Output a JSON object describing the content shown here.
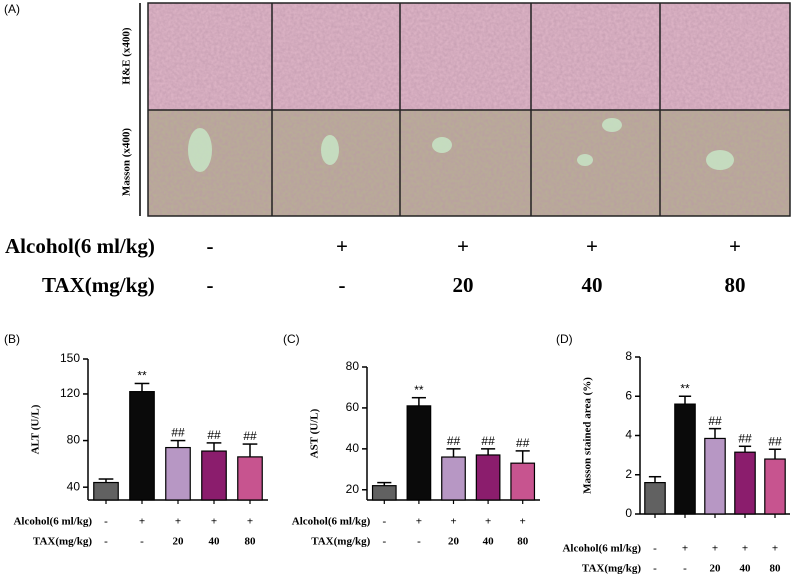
{
  "panel_a": {
    "label": "(A)",
    "row_labels": [
      "H&E (x400)",
      "Masson (x400)"
    ],
    "conditions": [
      {
        "label": "Alcohol(6 ml/kg)",
        "values": [
          "-",
          "+",
          "+",
          "+",
          "+"
        ]
      },
      {
        "label": "TAX(mg/kg)",
        "values": [
          "-",
          "-",
          "20",
          "40",
          "80"
        ]
      }
    ]
  },
  "chart_data": [
    {
      "type": "bar",
      "panel": "(B)",
      "ylabel": "ALT (U/L)",
      "values": [
        44,
        122,
        74,
        71,
        66
      ],
      "errors": [
        3,
        7,
        6,
        7,
        11
      ],
      "colors": [
        "#616161",
        "#0a0a0a",
        "#b797c4",
        "#8b1d6d",
        "#c7548f"
      ],
      "significance": [
        null,
        "**",
        "##",
        "##",
        "##"
      ],
      "ylim": [
        29,
        150
      ],
      "yticks": [
        40,
        80,
        120,
        150
      ],
      "conditions": [
        {
          "label": "Alcohol(6 ml/kg)",
          "values": [
            "-",
            "+",
            "+",
            "+",
            "+"
          ]
        },
        {
          "label": "TAX(mg/kg)",
          "values": [
            "-",
            "-",
            "20",
            "40",
            "80"
          ]
        }
      ]
    },
    {
      "type": "bar",
      "panel": "(C)",
      "ylabel": "AST (U/L)",
      "values": [
        22,
        61,
        36,
        37,
        33
      ],
      "errors": [
        1.5,
        4,
        4,
        3,
        6
      ],
      "colors": [
        "#616161",
        "#0a0a0a",
        "#b797c4",
        "#8b1d6d",
        "#c7548f"
      ],
      "significance": [
        null,
        "**",
        "##",
        "##",
        "##"
      ],
      "ylim": [
        15,
        80
      ],
      "yticks": [
        20,
        40,
        60,
        80
      ],
      "conditions": [
        {
          "label": "Alcohol(6 ml/kg)",
          "values": [
            "-",
            "+",
            "+",
            "+",
            "+"
          ]
        },
        {
          "label": "TAX(mg/kg)",
          "values": [
            "-",
            "-",
            "20",
            "40",
            "80"
          ]
        }
      ]
    },
    {
      "type": "bar",
      "panel": "(D)",
      "ylabel": "Masson stained area (%)",
      "values": [
        1.6,
        5.6,
        3.85,
        3.15,
        2.8
      ],
      "errors": [
        0.3,
        0.4,
        0.5,
        0.3,
        0.5
      ],
      "colors": [
        "#616161",
        "#0a0a0a",
        "#b797c4",
        "#8b1d6d",
        "#c7548f"
      ],
      "significance": [
        null,
        "**",
        "##",
        "##",
        "##"
      ],
      "ylim": [
        0,
        8
      ],
      "yticks": [
        0,
        2,
        4,
        6,
        8
      ],
      "conditions": [
        {
          "label": "Alcohol(6 ml/kg)",
          "values": [
            "-",
            "+",
            "+",
            "+",
            "+"
          ]
        },
        {
          "label": "TAX(mg/kg)",
          "values": [
            "-",
            "-",
            "20",
            "40",
            "80"
          ]
        }
      ]
    }
  ]
}
